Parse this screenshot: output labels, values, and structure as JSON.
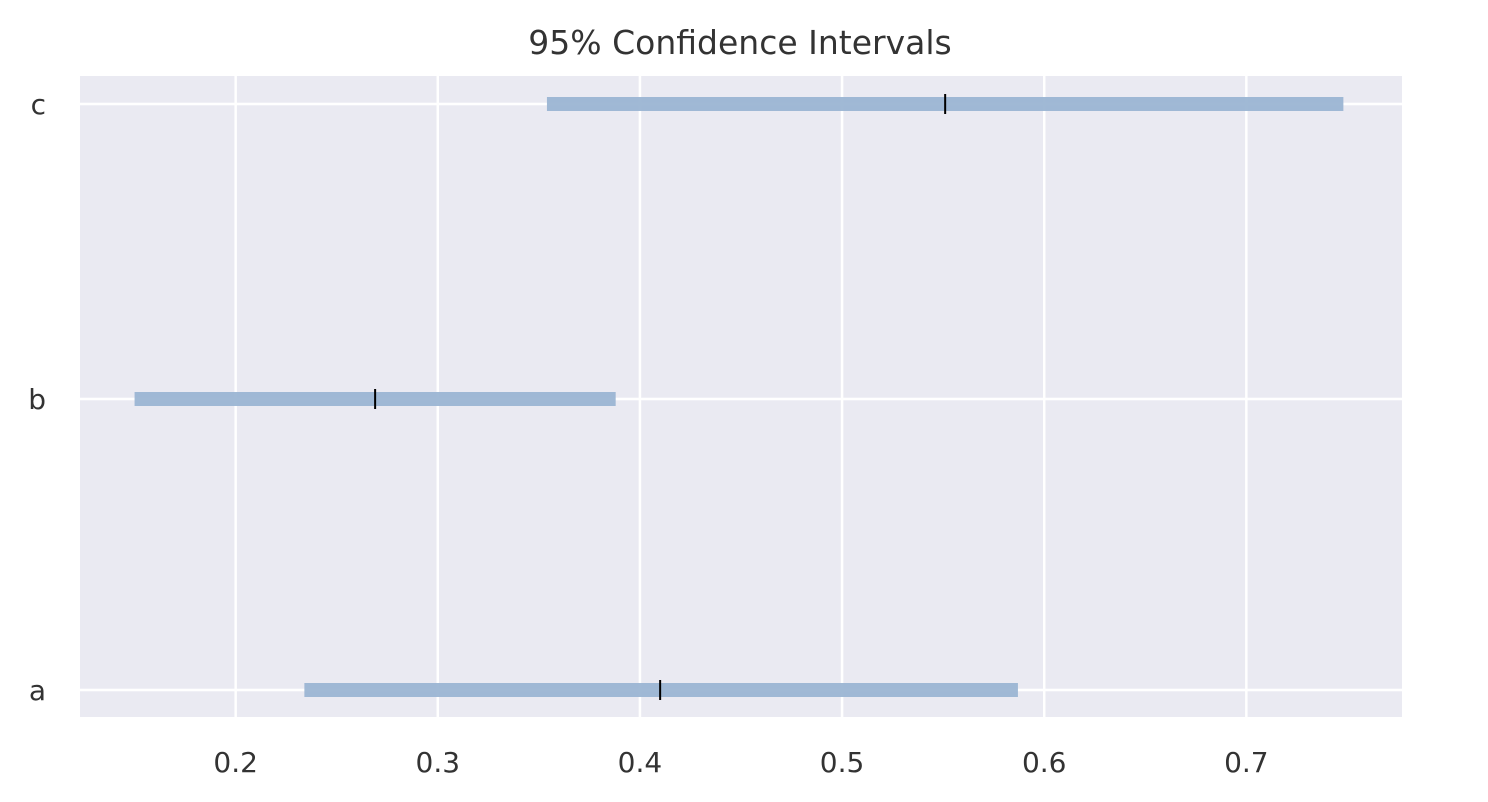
{
  "chart_data": {
    "type": "interval",
    "title": "95% Confidence Intervals",
    "xlabel": "",
    "ylabel": "",
    "categories": [
      "a",
      "b",
      "c"
    ],
    "intervals": [
      {
        "category": "a",
        "low": 0.234,
        "high": 0.587,
        "center": 0.41
      },
      {
        "category": "b",
        "low": 0.15,
        "high": 0.388,
        "center": 0.269
      },
      {
        "category": "c",
        "low": 0.354,
        "high": 0.748,
        "center": 0.551
      }
    ],
    "xlim": [
      0.123,
      0.777
    ],
    "xticks": [
      0.2,
      0.3,
      0.4,
      0.5,
      0.6,
      0.7
    ],
    "xtick_labels": [
      "0.2",
      "0.3",
      "0.4",
      "0.5",
      "0.6",
      "0.7"
    ],
    "grid": true,
    "colors": {
      "background": "#eaeaf2",
      "grid": "#ffffff",
      "bar": "#9bb5d3",
      "center_mark": "#000000",
      "text": "#333333"
    }
  }
}
